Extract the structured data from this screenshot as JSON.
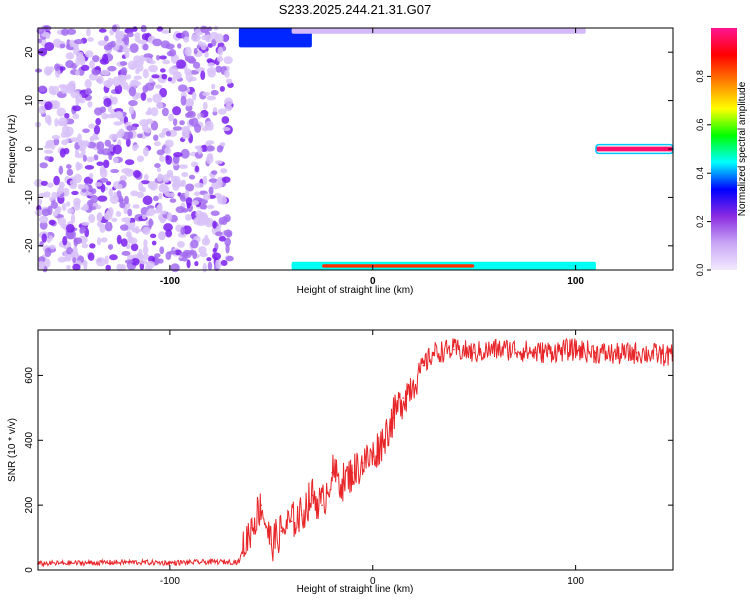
{
  "figure_title": "S233.2025.244.21.31.G07",
  "colorbar": {
    "label": "Normalized spectral amplitude",
    "ticks": [
      "0.0",
      "0.2",
      "0.4",
      "0.6",
      "0.8"
    ],
    "tick_values": [
      0.0,
      0.2,
      0.4,
      0.6,
      0.8
    ],
    "range": [
      0,
      1
    ],
    "colors": [
      "#f2eaff",
      "#c9a6f5",
      "#8a2be2",
      "#0000ff",
      "#00ffff",
      "#00ff00",
      "#ffff00",
      "#ff8000",
      "#ff0000",
      "#ff1493"
    ]
  },
  "chart_data": [
    {
      "type": "heatmap",
      "xlabel": "Height of straight line (km)",
      "ylabel": "Frequency (Hz)",
      "xlim": [
        -165,
        148
      ],
      "ylim": [
        -25,
        25
      ],
      "x_ticks": [
        -100,
        0,
        100
      ],
      "x_tick_labels": [
        "-100",
        "0",
        "100"
      ],
      "y_ticks": [
        -20,
        -10,
        0,
        10,
        20
      ],
      "y_tick_labels": [
        "-20",
        "-10",
        "0",
        "10",
        "20"
      ],
      "regions": [
        {
          "x": [
            -165,
            -70
          ],
          "y": [
            -25,
            25
          ],
          "level": 0.12,
          "note": "noise speckle"
        },
        {
          "x": [
            -66,
            -30
          ],
          "y": [
            21,
            25
          ],
          "level": 0.35
        },
        {
          "x": [
            -40,
            105
          ],
          "y": [
            23.8,
            25
          ],
          "level": 0.08
        },
        {
          "x": [
            -40,
            110
          ],
          "y": [
            -25,
            -23.3
          ],
          "level": 0.45
        },
        {
          "x": [
            -25,
            50
          ],
          "y": [
            -24.5,
            -23.8
          ],
          "level": 0.85
        },
        {
          "x": [
            110,
            148
          ],
          "y": [
            -0.5,
            0.5
          ],
          "level": 0.97
        }
      ]
    },
    {
      "type": "line",
      "xlabel": "Height of straight line (km)",
      "ylabel": "SNR (10 * v/v)",
      "xlim": [
        -165,
        148
      ],
      "ylim": [
        0,
        740
      ],
      "x_ticks": [
        -100,
        0,
        100
      ],
      "x_tick_labels": [
        "-100",
        "0",
        "100"
      ],
      "y_ticks": [
        0,
        200,
        400,
        600
      ],
      "y_tick_labels": [
        "0",
        "200",
        "400",
        "600"
      ],
      "series": [
        {
          "color": "#e8262a",
          "x": [
            -165,
            -140,
            -120,
            -100,
            -80,
            -66,
            -60,
            -55,
            -50,
            -45,
            -40,
            -35,
            -30,
            -25,
            -20,
            -15,
            -10,
            -5,
            0,
            5,
            10,
            15,
            20,
            25,
            30,
            40,
            50,
            60,
            70,
            80,
            90,
            100,
            110,
            120,
            130,
            140,
            148
          ],
          "values": [
            20,
            22,
            24,
            22,
            25,
            25,
            130,
            200,
            80,
            120,
            150,
            170,
            230,
            200,
            300,
            270,
            300,
            330,
            350,
            400,
            470,
            530,
            580,
            630,
            670,
            680,
            670,
            680,
            680,
            670,
            675,
            680,
            670,
            665,
            670,
            665,
            660
          ]
        }
      ]
    }
  ]
}
